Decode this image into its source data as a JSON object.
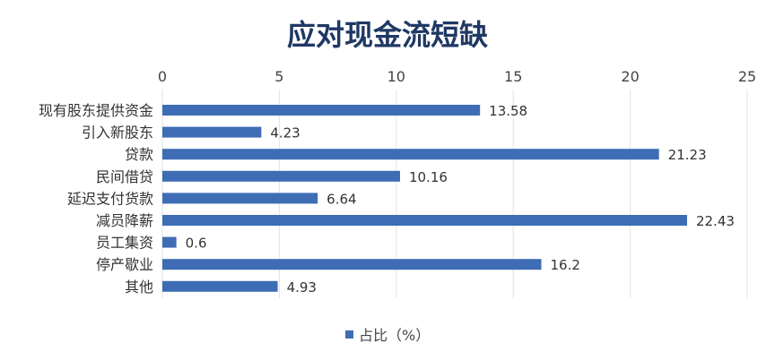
{
  "chart_data": {
    "type": "bar",
    "orientation": "horizontal",
    "title": "应对现金流短缺",
    "categories": [
      "现有股东提供资金",
      "引入新股东",
      "贷款",
      "民间借贷",
      "延迟支付货款",
      "减员降薪",
      "员工集资",
      "停产歇业",
      "其他"
    ],
    "series": [
      {
        "name": "占比（%）",
        "values": [
          13.58,
          4.23,
          21.23,
          10.16,
          6.64,
          22.43,
          0.6,
          16.2,
          4.93
        ]
      }
    ],
    "xlim": [
      0,
      25
    ],
    "xticks": [
      0,
      5,
      10,
      15,
      20,
      25
    ],
    "xaxis_position": "top",
    "grid": true,
    "legend": "bottom",
    "bar_color": "#3e6db5",
    "title_color": "#1f3864"
  }
}
